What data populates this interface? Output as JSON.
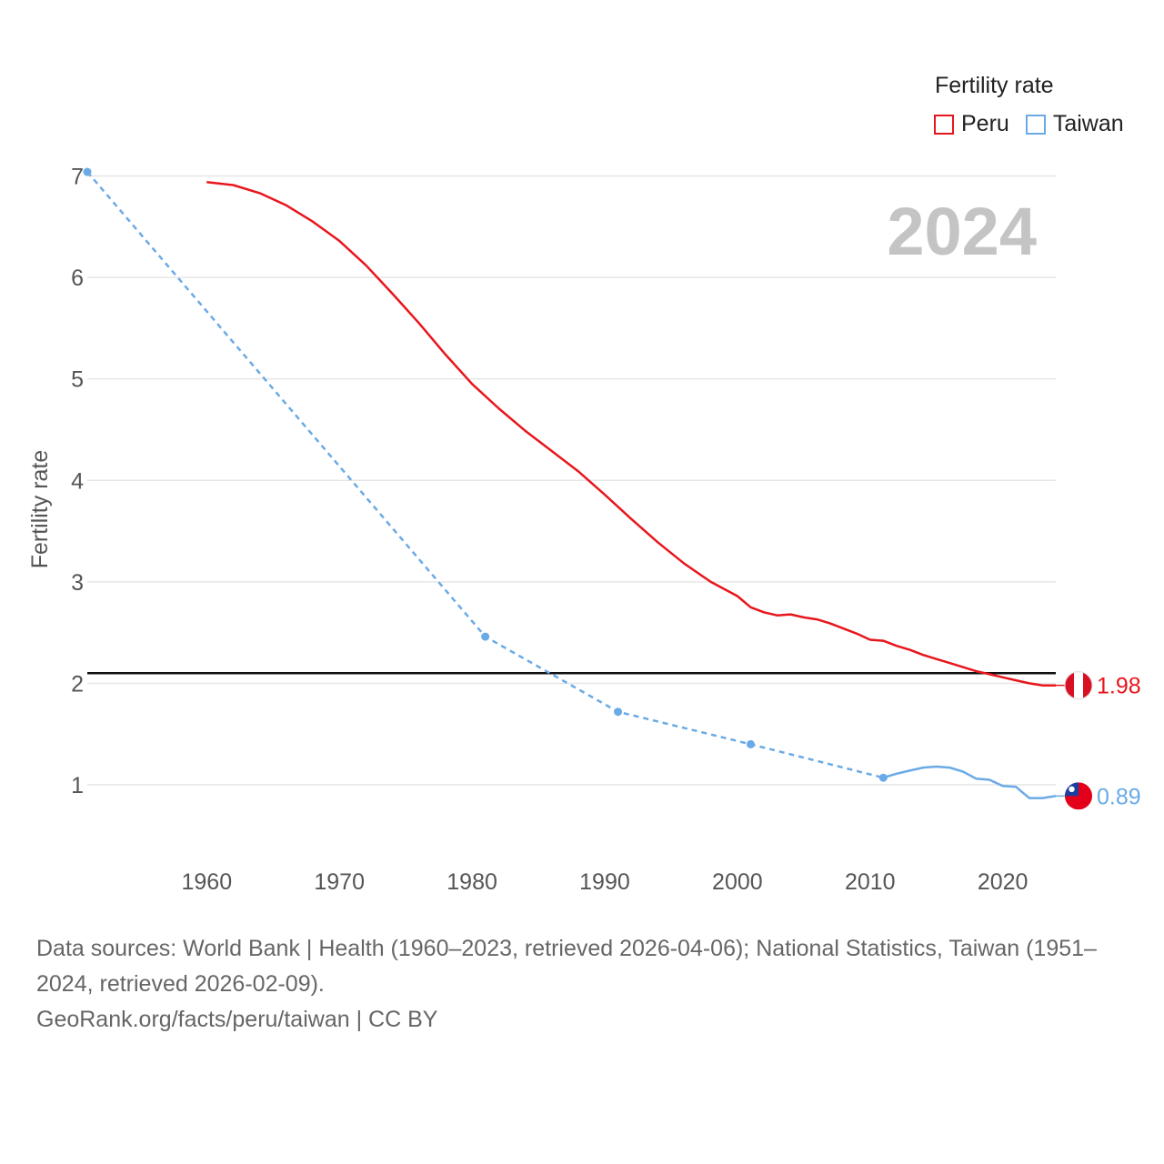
{
  "colors": {
    "peru": "#e8161c",
    "taiwan": "#6aaae6",
    "grid": "#e6e6e6",
    "reference": "#111111",
    "year": "#c4c4c4"
  },
  "legend": {
    "title": "Fertility rate",
    "items": [
      {
        "label": "Peru",
        "color": "#e8161c"
      },
      {
        "label": "Taiwan",
        "color": "#6aaae6"
      }
    ]
  },
  "chart_data": {
    "type": "line",
    "ylabel": "Fertility rate",
    "xlabel": "",
    "year_label": "2024",
    "xlim": [
      1951,
      2024
    ],
    "ylim": [
      0.4,
      7.3
    ],
    "xticks": [
      "1960",
      "1970",
      "1980",
      "1990",
      "2000",
      "2010",
      "2020"
    ],
    "yticks": [
      "1",
      "2",
      "3",
      "4",
      "5",
      "6",
      "7"
    ],
    "reference_line": 2.1,
    "series": [
      {
        "name": "Peru",
        "color": "#e8161c",
        "end_label": "1.98",
        "end_icon": "peru-flag-icon",
        "points": [
          [
            1960,
            6.94
          ],
          [
            1962,
            6.91
          ],
          [
            1964,
            6.83
          ],
          [
            1966,
            6.71
          ],
          [
            1968,
            6.55
          ],
          [
            1970,
            6.36
          ],
          [
            1972,
            6.12
          ],
          [
            1974,
            5.84
          ],
          [
            1976,
            5.55
          ],
          [
            1978,
            5.24
          ],
          [
            1980,
            4.95
          ],
          [
            1982,
            4.71
          ],
          [
            1984,
            4.49
          ],
          [
            1986,
            4.29
          ],
          [
            1988,
            4.09
          ],
          [
            1990,
            3.86
          ],
          [
            1992,
            3.62
          ],
          [
            1994,
            3.39
          ],
          [
            1996,
            3.18
          ],
          [
            1998,
            3.0
          ],
          [
            2000,
            2.86
          ],
          [
            2001,
            2.75
          ],
          [
            2002,
            2.7
          ],
          [
            2003,
            2.67
          ],
          [
            2004,
            2.68
          ],
          [
            2005,
            2.65
          ],
          [
            2006,
            2.63
          ],
          [
            2007,
            2.59
          ],
          [
            2008,
            2.54
          ],
          [
            2009,
            2.49
          ],
          [
            2010,
            2.43
          ],
          [
            2011,
            2.42
          ],
          [
            2012,
            2.37
          ],
          [
            2013,
            2.33
          ],
          [
            2014,
            2.28
          ],
          [
            2015,
            2.24
          ],
          [
            2016,
            2.2
          ],
          [
            2017,
            2.16
          ],
          [
            2018,
            2.12
          ],
          [
            2019,
            2.09
          ],
          [
            2020,
            2.06
          ],
          [
            2021,
            2.03
          ],
          [
            2022,
            2.0
          ],
          [
            2023,
            1.98
          ],
          [
            2024,
            1.98
          ]
        ]
      },
      {
        "name": "Taiwan",
        "color": "#6aaae6",
        "end_label": "0.89",
        "end_icon": "taiwan-flag-icon",
        "census_points": [
          [
            1951,
            7.04
          ],
          [
            1981,
            2.46
          ],
          [
            1991,
            1.72
          ],
          [
            2001,
            1.4
          ],
          [
            2011,
            1.07
          ]
        ],
        "annual_points": [
          [
            2011,
            1.07
          ],
          [
            2012,
            1.11
          ],
          [
            2013,
            1.14
          ],
          [
            2014,
            1.17
          ],
          [
            2015,
            1.18
          ],
          [
            2016,
            1.17
          ],
          [
            2017,
            1.13
          ],
          [
            2018,
            1.06
          ],
          [
            2019,
            1.05
          ],
          [
            2020,
            0.99
          ],
          [
            2021,
            0.98
          ],
          [
            2022,
            0.87
          ],
          [
            2023,
            0.87
          ],
          [
            2024,
            0.89
          ]
        ]
      }
    ]
  },
  "footer": {
    "sources": "Data sources: World Bank | Health (1960–2023, retrieved 2026-04-06); National Statistics, Taiwan (1951–2024, retrieved 2026-02-09).",
    "credit": "GeoRank.org/facts/peru/taiwan | CC BY"
  }
}
